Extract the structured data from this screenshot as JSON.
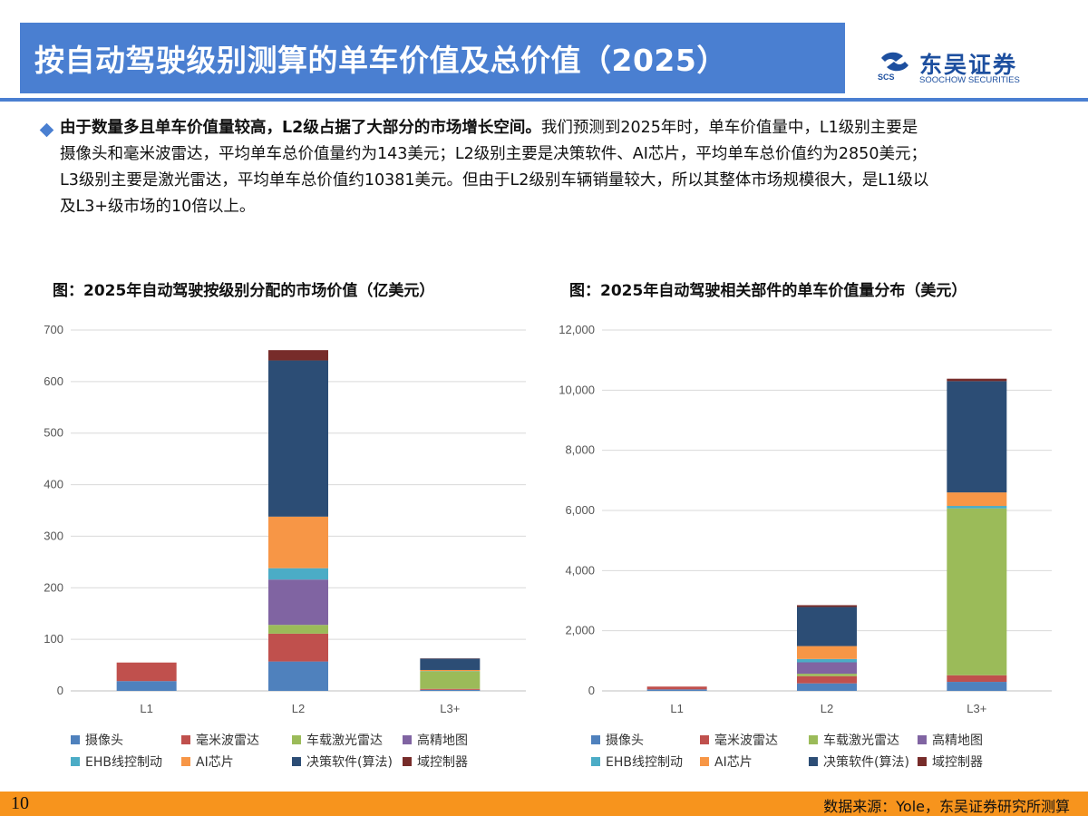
{
  "header": {
    "title": "按自动驾驶级别测算的单车价值及总价值（2025）",
    "logo_cn": "东吴证券",
    "logo_en": "SOOCHOW SECURITIES",
    "logo_short": "SCS"
  },
  "body": {
    "lead": "由于数量多且单车价值量较高，L2级占据了大部分的市场增长空间。",
    "line1_rest": "我们预测到2025年时，单车价值量中，L1级别主要是",
    "line2": "摄像头和毫米波雷达，平均单车总价值量约为143美元；L2级别主要是决策软件、AI芯片，平均单车总价值约为2850美元；",
    "line3": "L3级别主要是激光雷达，平均单车总价值约10381美元。但由于L2级别车辆销量较大，所以其整体市场规模很大，是L1级以",
    "line4": "及L3+级市场的10倍以上。"
  },
  "footer": {
    "page_number": "10",
    "source": "数据来源：Yole，东吴证券研究所测算"
  },
  "colors": {
    "title_bar": "#4a7fd1",
    "footer_bar": "#f7941d"
  },
  "chart_data": [
    {
      "type": "bar",
      "stacked": true,
      "title": "图：2025年自动驾驶按级别分配的市场价值（亿美元）",
      "categories": [
        "L1",
        "L2",
        "L3+"
      ],
      "ylim": [
        0,
        700
      ],
      "yticks": [
        0,
        100,
        200,
        300,
        400,
        500,
        600,
        700
      ],
      "ytick_labels": [
        "0",
        "100",
        "200",
        "300",
        "400",
        "500",
        "600",
        "700"
      ],
      "grid": true,
      "legend_position": "bottom",
      "series": [
        {
          "name": "摄像头",
          "color": "#4f81bd",
          "values": [
            19,
            57,
            2
          ]
        },
        {
          "name": "毫米波雷达",
          "color": "#c0504d",
          "values": [
            36,
            54,
            2
          ]
        },
        {
          "name": "车载激光雷达",
          "color": "#9bbb59",
          "values": [
            0,
            17,
            34
          ]
        },
        {
          "name": "高精地图",
          "color": "#8064a2",
          "values": [
            0,
            88,
            0
          ]
        },
        {
          "name": "EHB线控制动",
          "color": "#4bacc6",
          "values": [
            0,
            22,
            0.5
          ]
        },
        {
          "name": "AI芯片",
          "color": "#f79646",
          "values": [
            0,
            100,
            2
          ]
        },
        {
          "name": "决策软件(算法)",
          "color": "#2c4d75",
          "values": [
            0,
            303,
            22
          ]
        },
        {
          "name": "域控制器",
          "color": "#772c2a",
          "values": [
            0,
            20,
            0.5
          ]
        }
      ]
    },
    {
      "type": "bar",
      "stacked": true,
      "title": "图：2025年自动驾驶相关部件的单车价值量分布（美元）",
      "categories": [
        "L1",
        "L2",
        "L3+"
      ],
      "ylim": [
        0,
        12000
      ],
      "yticks": [
        0,
        2000,
        4000,
        6000,
        8000,
        10000,
        12000
      ],
      "ytick_labels": [
        "0",
        "2,000",
        "4,000",
        "6,000",
        "8,000",
        "10,000",
        "12,000"
      ],
      "grid": true,
      "legend_position": "bottom",
      "series": [
        {
          "name": "摄像头",
          "color": "#4f81bd",
          "values": [
            50,
            250,
            300
          ]
        },
        {
          "name": "毫米波雷达",
          "color": "#c0504d",
          "values": [
            93,
            240,
            220
          ]
        },
        {
          "name": "车载激光雷达",
          "color": "#9bbb59",
          "values": [
            0,
            80,
            5550
          ]
        },
        {
          "name": "高精地图",
          "color": "#8064a2",
          "values": [
            0,
            380,
            0
          ]
        },
        {
          "name": "EHB线控制动",
          "color": "#4bacc6",
          "values": [
            0,
            110,
            80
          ]
        },
        {
          "name": "AI芯片",
          "color": "#f79646",
          "values": [
            0,
            430,
            450
          ]
        },
        {
          "name": "决策软件(算法)",
          "color": "#2c4d75",
          "values": [
            0,
            1300,
            3700
          ]
        },
        {
          "name": "域控制器",
          "color": "#772c2a",
          "values": [
            0,
            60,
            81
          ]
        }
      ]
    }
  ]
}
